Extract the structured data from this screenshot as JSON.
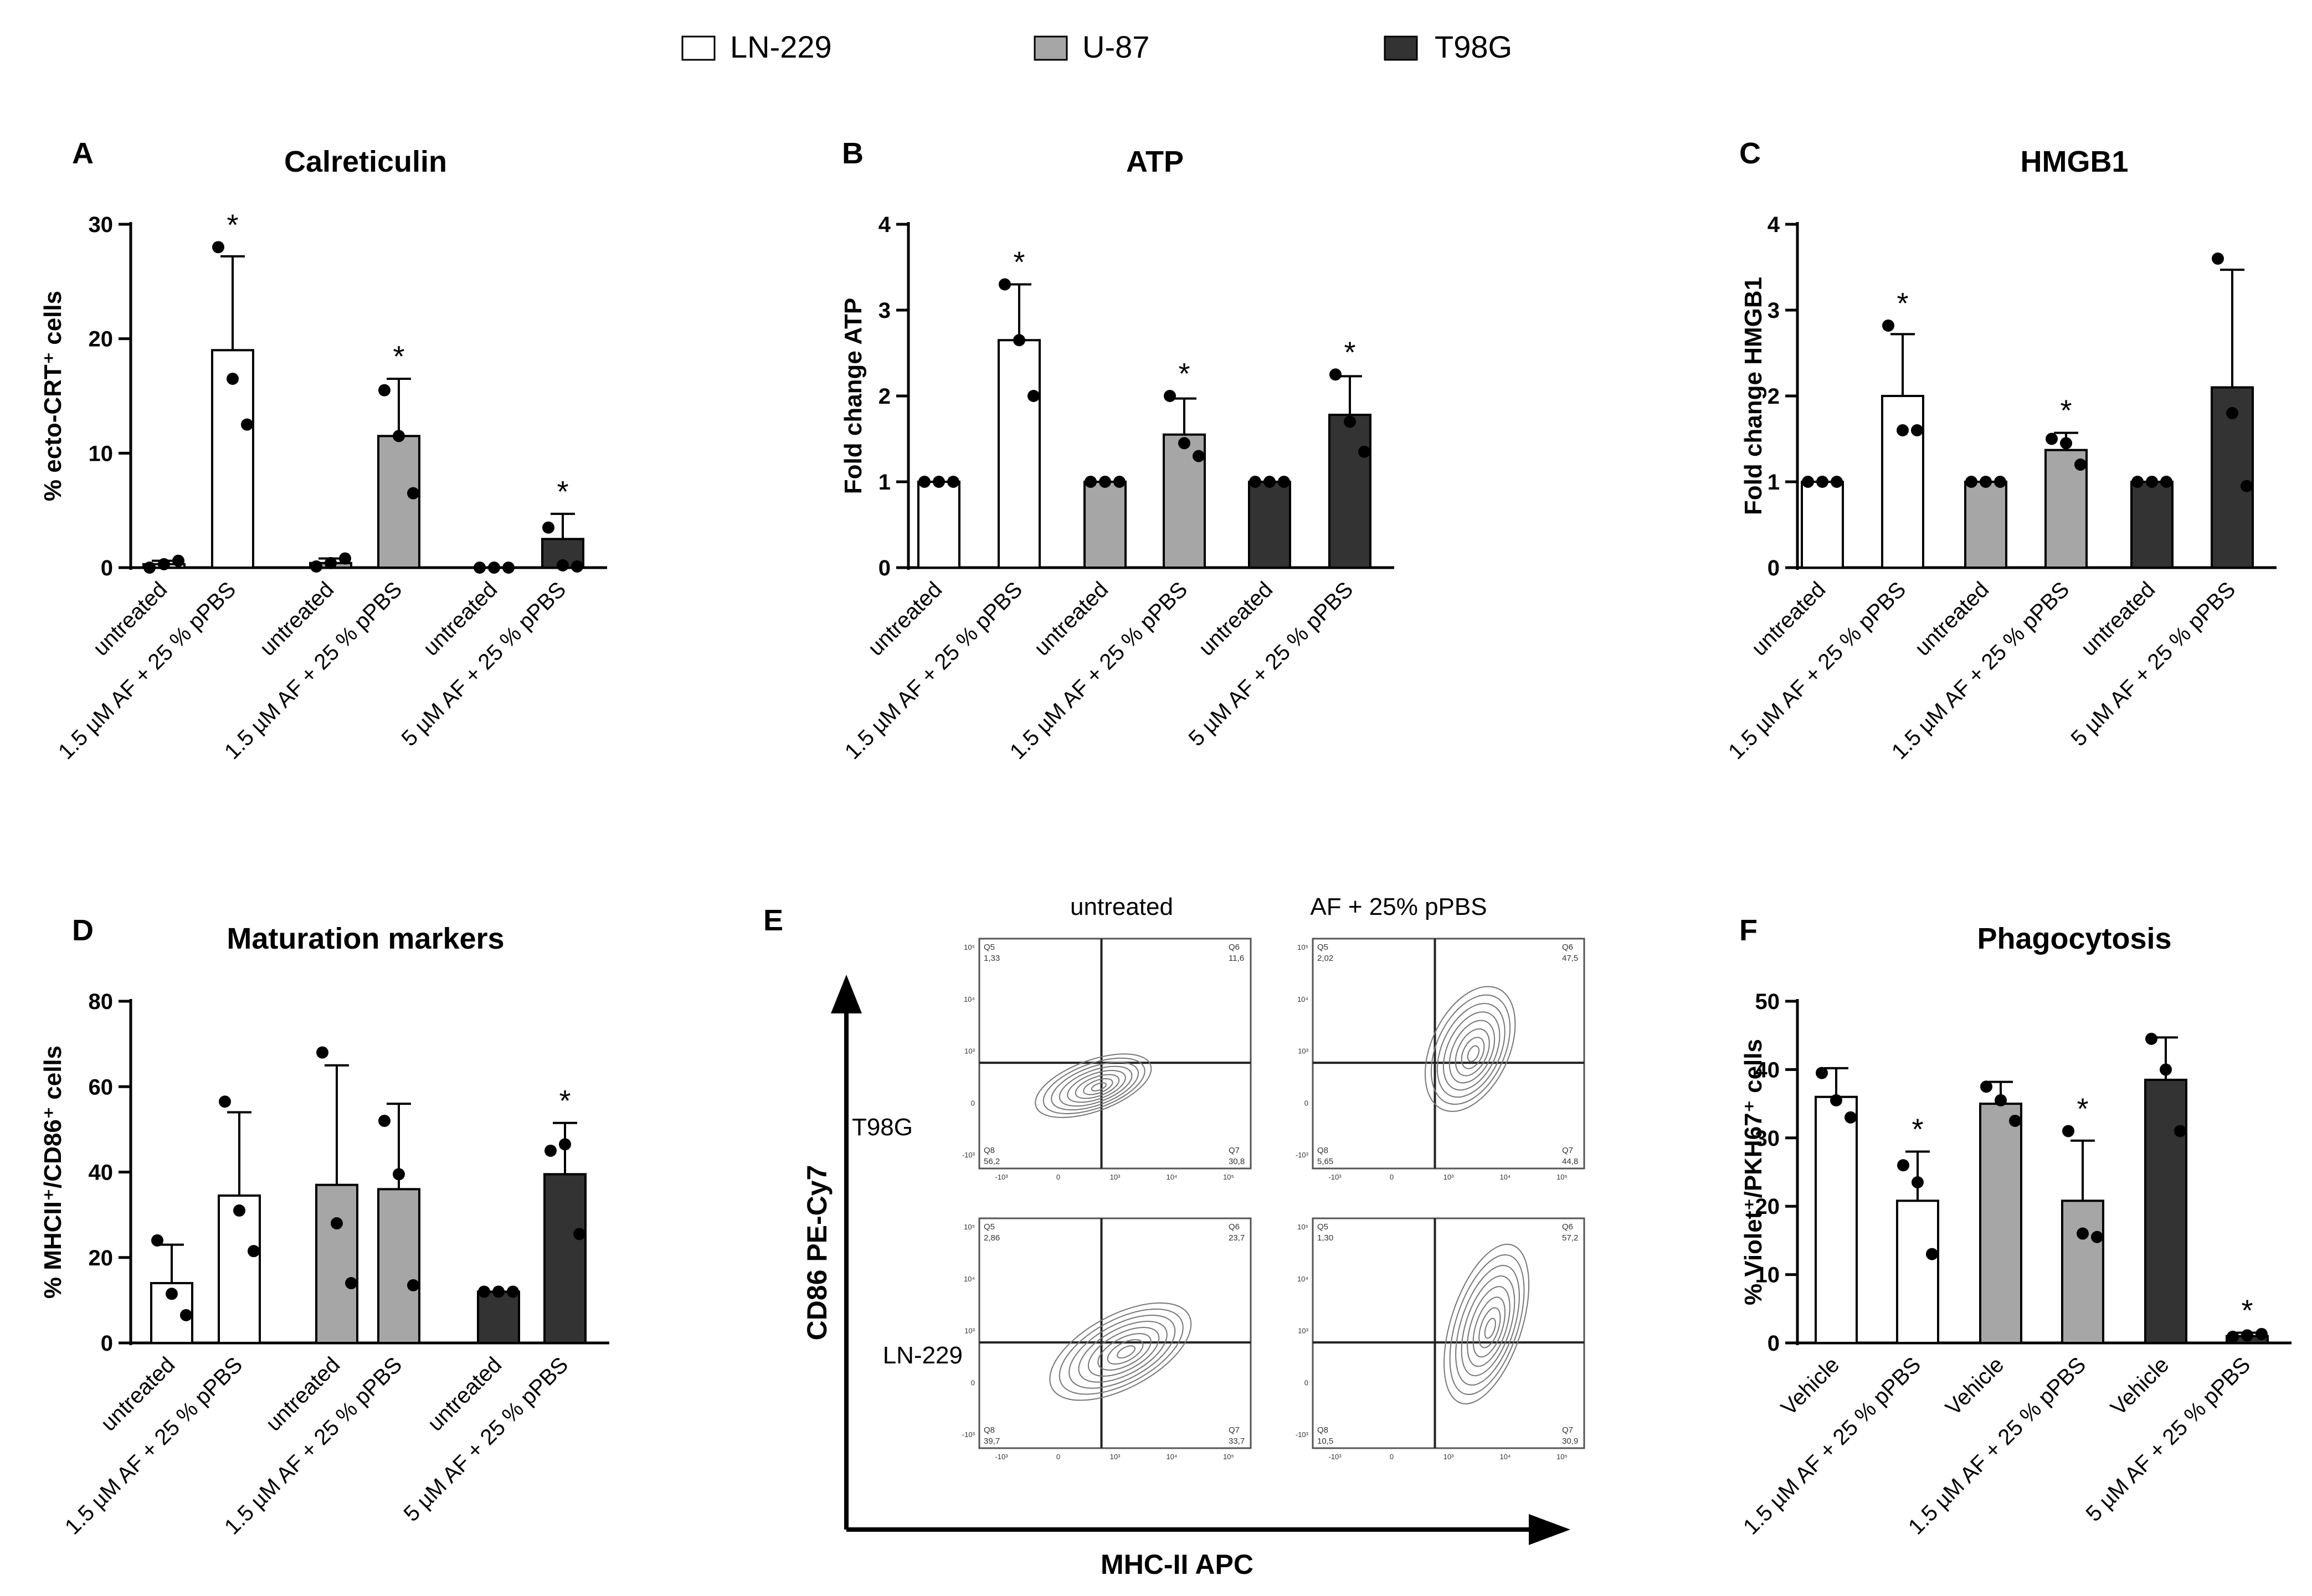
{
  "legend": [
    {
      "name": "LN-229",
      "color": "#ffffff"
    },
    {
      "name": "U-87",
      "color": "#a6a6a6"
    },
    {
      "name": "T98G",
      "color": "#333333"
    }
  ],
  "chart_data": [
    {
      "panel": "A",
      "type": "bar",
      "title": "Calreticulin",
      "ylabel": "% ecto-CRT⁺ cells",
      "ylim": [
        0,
        30
      ],
      "yticks": [
        0,
        10,
        20,
        30
      ],
      "categories": [
        "untreated",
        "1.5 µM AF + 25 % pPBS",
        "untreated",
        "1.5 µM AF + 25 % pPBS",
        "untreated",
        "5 µM AF + 25 % pPBS"
      ],
      "groups": [
        "LN-229",
        "LN-229",
        "U-87",
        "U-87",
        "T98G",
        "T98G"
      ],
      "values": [
        0.3,
        19,
        0.4,
        11.5,
        0,
        2.5
      ],
      "errors": [
        0.3,
        8.2,
        0.4,
        5.0,
        0,
        2.2
      ],
      "points": [
        [
          0,
          0.3,
          0.6
        ],
        [
          28,
          16.5,
          12.5
        ],
        [
          0.1,
          0.4,
          0.8
        ],
        [
          15.5,
          11.5,
          6.5
        ],
        [
          0,
          0,
          0
        ],
        [
          3.5,
          0.2,
          0.1
        ]
      ],
      "significant": [
        false,
        true,
        false,
        true,
        false,
        true
      ]
    },
    {
      "panel": "B",
      "type": "bar",
      "title": "ATP",
      "ylabel": "Fold change ATP",
      "ylim": [
        0,
        4
      ],
      "yticks": [
        0,
        1,
        2,
        3,
        4
      ],
      "categories": [
        "untreated",
        "1.5 µM AF + 25 % pPBS",
        "untreated",
        "1.5 µM AF + 25 % pPBS",
        "untreated",
        "5 µM AF + 25 % pPBS"
      ],
      "groups": [
        "LN-229",
        "LN-229",
        "U-87",
        "U-87",
        "T98G",
        "T98G"
      ],
      "values": [
        1,
        2.65,
        1,
        1.55,
        1,
        1.78
      ],
      "errors": [
        0,
        0.65,
        0,
        0.42,
        0,
        0.45
      ],
      "points": [
        [
          1,
          1,
          1
        ],
        [
          3.3,
          2.65,
          2.0
        ],
        [
          1,
          1,
          1
        ],
        [
          2.0,
          1.45,
          1.3
        ],
        [
          1,
          1,
          1
        ],
        [
          2.25,
          1.7,
          1.35
        ]
      ],
      "significant": [
        false,
        true,
        false,
        true,
        false,
        true
      ]
    },
    {
      "panel": "C",
      "type": "bar",
      "title": "HMGB1",
      "ylabel": "Fold change HMGB1",
      "ylim": [
        0,
        4
      ],
      "yticks": [
        0,
        1,
        2,
        3,
        4
      ],
      "categories": [
        "untreated",
        "1.5 µM AF + 25 % pPBS",
        "untreated",
        "1.5 µM AF + 25 % pPBS",
        "untreated",
        "5 µM AF + 25 % pPBS"
      ],
      "groups": [
        "LN-229",
        "LN-229",
        "U-87",
        "U-87",
        "T98G",
        "T98G"
      ],
      "values": [
        1,
        2.0,
        1,
        1.37,
        1,
        2.1
      ],
      "errors": [
        0,
        0.72,
        0,
        0.2,
        0,
        1.37
      ],
      "points": [
        [
          1,
          1,
          1
        ],
        [
          2.82,
          1.6,
          1.6
        ],
        [
          1,
          1,
          1
        ],
        [
          1.5,
          1.45,
          1.2
        ],
        [
          1,
          1,
          1
        ],
        [
          3.6,
          1.8,
          0.95
        ]
      ],
      "significant": [
        false,
        true,
        false,
        true,
        false,
        false
      ]
    },
    {
      "panel": "D",
      "type": "bar",
      "title": "Maturation markers",
      "ylabel": "% MHCII⁺/CD86⁺ cells",
      "ylim": [
        0,
        80
      ],
      "yticks": [
        0,
        20,
        40,
        60,
        80
      ],
      "categories": [
        "untreated",
        "1.5 µM AF + 25 % pPBS",
        "untreated",
        "1.5 µM AF + 25 % pPBS",
        "untreated",
        "5 µM AF + 25 % pPBS"
      ],
      "groups": [
        "LN-229",
        "LN-229",
        "U-87",
        "U-87",
        "T98G",
        "T98G"
      ],
      "values": [
        14,
        34.5,
        37,
        36,
        12,
        39.5
      ],
      "errors": [
        9,
        19.5,
        28,
        20,
        0,
        12
      ],
      "points": [
        [
          24,
          11.5,
          6.5
        ],
        [
          56.5,
          31,
          21.5
        ],
        [
          68,
          28,
          14
        ],
        [
          52,
          39.5,
          13.5
        ],
        [
          12,
          12,
          12
        ],
        [
          45,
          46.5,
          25.5
        ]
      ],
      "significant": [
        false,
        false,
        false,
        false,
        false,
        true
      ]
    },
    {
      "panel": "F",
      "type": "bar",
      "title": "Phagocytosis",
      "ylabel": "% Violet⁺/PKH67⁺ cells",
      "ylim": [
        0,
        50
      ],
      "yticks": [
        0,
        10,
        20,
        30,
        40,
        50
      ],
      "categories": [
        "Vehicle",
        "1.5 µM AF + 25 % pPBS",
        "Vehicle",
        "1.5 µM AF + 25 % pPBS",
        "Vehicle",
        "5 µM AF + 25 % pPBS"
      ],
      "groups": [
        "LN-229",
        "LN-229",
        "U-87",
        "U-87",
        "T98G",
        "T98G"
      ],
      "values": [
        36,
        20.8,
        35,
        20.8,
        38.5,
        1
      ],
      "errors": [
        4.2,
        7.2,
        3.2,
        8.8,
        6.2,
        0.5
      ],
      "points": [
        [
          39.5,
          35.5,
          33
        ],
        [
          26,
          23.5,
          13
        ],
        [
          37.5,
          35.5,
          32.5
        ],
        [
          31,
          16,
          15.5
        ],
        [
          44.5,
          40,
          31
        ],
        [
          0.9,
          1.1,
          1.3
        ]
      ],
      "significant": [
        false,
        true,
        false,
        true,
        false,
        true
      ]
    }
  ],
  "flow_panel": {
    "letter": "E",
    "x_axis": "MHC-II APC",
    "y_axis": "CD86 PE-Cy7",
    "columns": [
      "untreated",
      "AF + 25% pPBS"
    ],
    "rows": [
      "T98G",
      "LN-229"
    ],
    "quadrant_names": [
      "Q5",
      "Q6",
      "Q8",
      "Q7"
    ],
    "plots": [
      {
        "row": "T98G",
        "column": "untreated",
        "q5": "1,33",
        "q6": "11,6",
        "q8": "56,2",
        "q7": "30,8"
      },
      {
        "row": "T98G",
        "column": "AF + 25% pPBS",
        "q5": "2,02",
        "q6": "47,5",
        "q8": "5,65",
        "q7": "44,8"
      },
      {
        "row": "LN-229",
        "column": "untreated",
        "q5": "2,86",
        "q6": "23,7",
        "q8": "39,7",
        "q7": "33,7"
      },
      {
        "row": "LN-229",
        "column": "AF + 25% pPBS",
        "q5": "1,30",
        "q6": "57,2",
        "q8": "10,5",
        "q7": "30,9"
      }
    ],
    "x_ticks": [
      "-10³",
      "0",
      "10³",
      "10⁴",
      "10⁵"
    ],
    "y_ticks": [
      "10⁵",
      "10⁴",
      "10³",
      "0",
      "-10³"
    ]
  },
  "significance_marker": "*"
}
